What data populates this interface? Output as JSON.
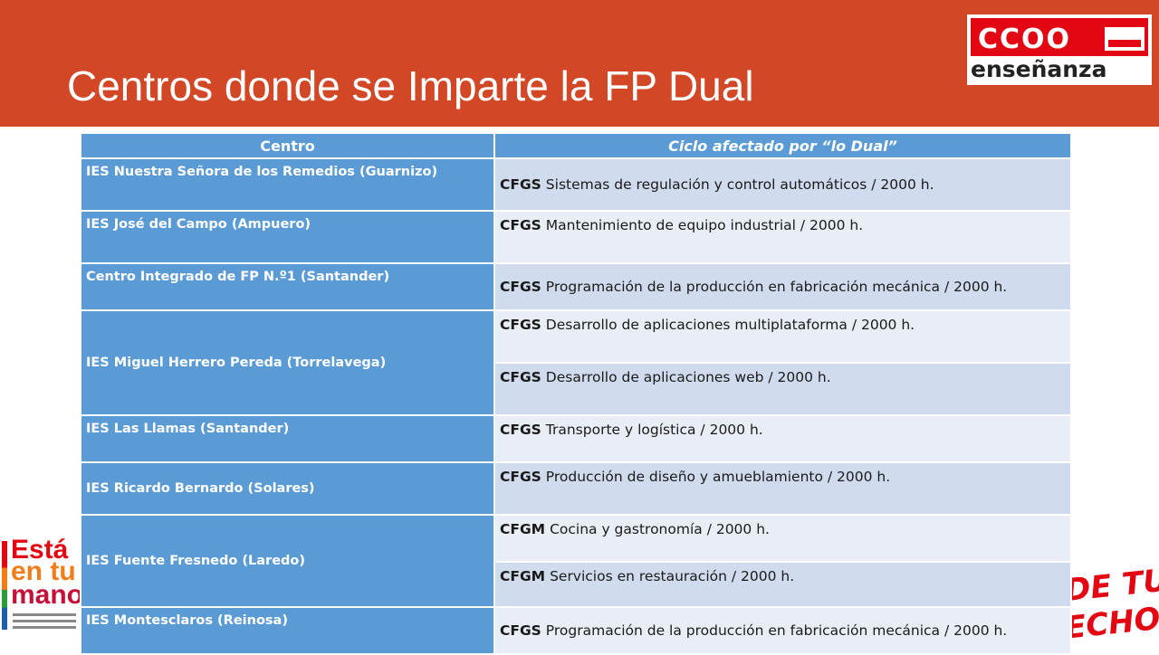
{
  "slide": {
    "title": "Centros donde se Imparte la FP Dual"
  },
  "logo": {
    "word": "CCOO",
    "sub": "enseñanza"
  },
  "poster_left": {
    "lines": [
      "Está",
      "en tu",
      "mano"
    ]
  },
  "poster_right": {
    "lines": [
      "DE TUS",
      "ECHOS"
    ]
  },
  "table": {
    "headers": [
      "Centro",
      "Ciclo afectado por “lo Dual”"
    ],
    "rows": [
      {
        "centro": "IES Nuestra Señora de los Remedios (Guarnizo)",
        "nivel": "CFGS",
        "ciclo": "Sistemas de regulación y control automáticos / 2000 h."
      },
      {
        "centro": "IES José del Campo (Ampuero)",
        "nivel": "CFGS",
        "ciclo": "Mantenimiento de equipo industrial / 2000 h."
      },
      {
        "centro": "Centro Integrado de FP N.º1 (Santander)",
        "nivel": "CFGS",
        "ciclo": "Programación de la producción en fabricación mecánica / 2000 h."
      },
      {
        "centro": "IES Miguel Herrero Pereda (Torrelavega)",
        "nivel": "CFGS",
        "ciclo": "Desarrollo de aplicaciones multiplataforma / 2000 h."
      },
      {
        "centro": "",
        "nivel": "CFGS",
        "ciclo": "Desarrollo de aplicaciones web / 2000 h."
      },
      {
        "centro": "IES Las Llamas (Santander)",
        "nivel": "CFGS",
        "ciclo": "Transporte y logística / 2000 h."
      },
      {
        "centro": "IES Ricardo Bernardo (Solares)",
        "nivel": "CFGS",
        "ciclo": "Producción de diseño y amueblamiento / 2000 h."
      },
      {
        "centro": "IES Fuente Fresnedo (Laredo)",
        "nivel": "CFGM",
        "ciclo": "Cocina y gastronomía / 2000 h."
      },
      {
        "centro": "",
        "nivel": "CFGM",
        "ciclo": "Servicios en restauración / 2000 h."
      },
      {
        "centro": "IES Montesclaros (Reinosa)",
        "nivel": "CFGS",
        "ciclo": "Programación de la producción en fabricación mecánica / 2000 h."
      }
    ]
  },
  "colors": {
    "header_bg": "#d24726",
    "table_blue": "#5b9bd5",
    "row_odd": "#d0dcee",
    "row_even": "#e9eef6"
  }
}
